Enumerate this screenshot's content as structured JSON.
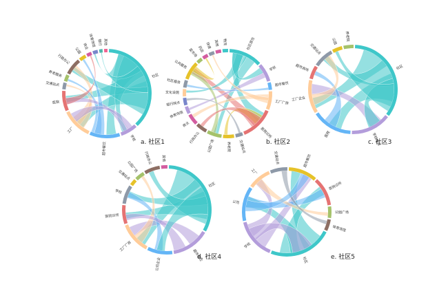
{
  "figure": {
    "panels": [
      {
        "id": "p1",
        "caption": "a. 社区1",
        "groups": [
          {
            "label": "社区",
            "value": 30,
            "color": "#3ec7c9"
          },
          {
            "label": "学校",
            "value": 5,
            "color": "#b39ddb"
          },
          {
            "label": "超市餐饮",
            "value": 9,
            "color": "#64b5f6"
          },
          {
            "label": "工厂",
            "value": 9,
            "color": "#ffcc99"
          },
          {
            "label": "医院",
            "value": 6,
            "color": "#e57373"
          },
          {
            "label": "交通站点",
            "value": 2,
            "color": "#8e99a8"
          },
          {
            "label": "养老服务",
            "value": 2,
            "color": "#a5c26a"
          },
          {
            "label": "行政办公",
            "value": 5,
            "color": "#8d6e63"
          },
          {
            "label": "公园",
            "value": 2,
            "color": "#e6c229"
          },
          {
            "label": "商业",
            "value": 1.5,
            "color": "#d35da0"
          },
          {
            "label": "体育场馆",
            "value": 1.5,
            "color": "#7986cb"
          },
          {
            "label": "银行",
            "value": 1,
            "color": "#4db6ac"
          },
          {
            "label": "其他",
            "value": 1,
            "color": "#f06292"
          }
        ],
        "chords": [
          [
            0,
            2,
            "#3ec7c9"
          ],
          [
            0,
            3,
            "#3ec7c9"
          ],
          [
            0,
            4,
            "#3ec7c9"
          ],
          [
            0,
            1,
            "#3ec7c9"
          ],
          [
            0,
            7,
            "#3ec7c9"
          ],
          [
            3,
            7,
            "#ffcc99"
          ],
          [
            3,
            5,
            "#ffcc99"
          ],
          [
            2,
            6,
            "#64b5f6"
          ],
          [
            1,
            4,
            "#b39ddb"
          ],
          [
            4,
            9,
            "#e57373"
          ],
          [
            0,
            10,
            "#3ec7c9"
          ],
          [
            2,
            8,
            "#64b5f6"
          ],
          [
            0,
            11,
            "#3ec7c9"
          ],
          [
            1,
            3,
            "#b39ddb"
          ]
        ]
      },
      {
        "id": "p2",
        "caption": "b. 社区2",
        "groups": [
          {
            "label": "社区居住",
            "value": 9,
            "color": "#3ec7c9"
          },
          {
            "label": "学校",
            "value": 5,
            "color": "#b39ddb"
          },
          {
            "label": "超市餐饮",
            "value": 2,
            "color": "#64b5f6"
          },
          {
            "label": "工厂厂房",
            "value": 5,
            "color": "#ffcc99"
          },
          {
            "label": "医院诊所",
            "value": 9,
            "color": "#e57373"
          },
          {
            "label": "交通站点",
            "value": 2,
            "color": "#8e99a8"
          },
          {
            "label": "养老院",
            "value": 3,
            "color": "#e6c229"
          },
          {
            "label": "公园广场",
            "value": 4,
            "color": "#a5c26a"
          },
          {
            "label": "行政办公",
            "value": 3,
            "color": "#8d6e63"
          },
          {
            "label": "商业",
            "value": 3,
            "color": "#d35da0"
          },
          {
            "label": "体育场馆",
            "value": 2,
            "color": "#b39ddb"
          },
          {
            "label": "银行网点",
            "value": 2,
            "color": "#7986cb"
          },
          {
            "label": "文化设施",
            "value": 2,
            "color": "#ffcc99"
          },
          {
            "label": "社区服务",
            "value": 2,
            "color": "#8e99a8"
          },
          {
            "label": "公共服务",
            "value": 5,
            "color": "#e6c229"
          },
          {
            "label": "菜市场",
            "value": 1.5,
            "color": "#a5c26a"
          },
          {
            "label": "药店",
            "value": 1.5,
            "color": "#d35da0"
          },
          {
            "label": "快递",
            "value": 1.5,
            "color": "#8e99a8"
          },
          {
            "label": "其他",
            "value": 1.5,
            "color": "#d35da0"
          },
          {
            "label": "物流",
            "value": 1.5,
            "color": "#3ec7c9"
          }
        ],
        "chords": [
          [
            0,
            4,
            "#3ec7c9"
          ],
          [
            0,
            7,
            "#3ec7c9"
          ],
          [
            4,
            14,
            "#e57373"
          ],
          [
            3,
            9,
            "#ffcc99"
          ],
          [
            6,
            4,
            "#e6c229"
          ],
          [
            1,
            10,
            "#b39ddb"
          ],
          [
            0,
            12,
            "#3ec7c9"
          ],
          [
            2,
            13,
            "#64b5f6"
          ],
          [
            7,
            14,
            "#a5c26a"
          ],
          [
            4,
            8,
            "#e57373"
          ],
          [
            0,
            1,
            "#3ec7c9"
          ],
          [
            14,
            16,
            "#e6c229"
          ],
          [
            3,
            17,
            "#ffcc99"
          ],
          [
            5,
            11,
            "#8e99a8"
          ]
        ]
      },
      {
        "id": "p3",
        "caption": "c. 社区3",
        "groups": [
          {
            "label": "社区",
            "value": 14,
            "color": "#3ec7c9"
          },
          {
            "label": "学校培训",
            "value": 6,
            "color": "#b39ddb"
          },
          {
            "label": "医院",
            "value": 6,
            "color": "#64b5f6"
          },
          {
            "label": "工厂企业",
            "value": 5,
            "color": "#ffcc99"
          },
          {
            "label": "超市商场",
            "value": 2,
            "color": "#e57373"
          },
          {
            "label": "交通站点",
            "value": 3,
            "color": "#8e99a8"
          },
          {
            "label": "公园",
            "value": 1.5,
            "color": "#e6c229"
          },
          {
            "label": "养老院",
            "value": 1.5,
            "color": "#a5c26a"
          }
        ],
        "chords": [
          [
            0,
            3,
            "#3ec7c9"
          ],
          [
            0,
            2,
            "#3ec7c9"
          ],
          [
            0,
            5,
            "#3ec7c9"
          ],
          [
            1,
            3,
            "#b39ddb"
          ],
          [
            0,
            1,
            "#3ec7c9"
          ],
          [
            2,
            4,
            "#64b5f6"
          ],
          [
            3,
            5,
            "#ffcc99"
          ],
          [
            0,
            6,
            "#3ec7c9"
          ]
        ]
      },
      {
        "id": "p4",
        "caption": "d. 社区4",
        "groups": [
          {
            "label": "社区",
            "value": 14,
            "color": "#3ec7c9"
          },
          {
            "label": "超市餐饮",
            "value": 6,
            "color": "#b39ddb"
          },
          {
            "label": "公司企业",
            "value": 4,
            "color": "#64b5f6"
          },
          {
            "label": "工厂厂房",
            "value": 5,
            "color": "#ffcc99"
          },
          {
            "label": "医院诊所",
            "value": 3,
            "color": "#e57373"
          },
          {
            "label": "学校",
            "value": 3,
            "color": "#8e99a8"
          },
          {
            "label": "交通站点",
            "value": 1,
            "color": "#e6c229"
          },
          {
            "label": "公园广场",
            "value": 1.5,
            "color": "#a5c26a"
          },
          {
            "label": "行政办公",
            "value": 2.5,
            "color": "#8d6e63"
          },
          {
            "label": "其他",
            "value": 1,
            "color": "#d35da0"
          }
        ],
        "chords": [
          [
            0,
            3,
            "#3ec7c9"
          ],
          [
            0,
            4,
            "#3ec7c9"
          ],
          [
            0,
            5,
            "#3ec7c9"
          ],
          [
            1,
            3,
            "#b39ddb"
          ],
          [
            0,
            8,
            "#3ec7c9"
          ],
          [
            2,
            5,
            "#64b5f6"
          ],
          [
            3,
            7,
            "#ffcc99"
          ],
          [
            1,
            4,
            "#b39ddb"
          ],
          [
            0,
            2,
            "#3ec7c9"
          ]
        ]
      },
      {
        "id": "p5",
        "caption": "e. 社区5",
        "groups": [
          {
            "label": "超市餐饮",
            "value": 5,
            "color": "#e6c229"
          },
          {
            "label": "医院诊所",
            "value": 5,
            "color": "#e57373"
          },
          {
            "label": "公园广场",
            "value": 2,
            "color": "#a5c26a"
          },
          {
            "label": "体育场馆",
            "value": 2,
            "color": "#8d6e63"
          },
          {
            "label": "社区",
            "value": 11,
            "color": "#3ec7c9"
          },
          {
            "label": "学校",
            "value": 7,
            "color": "#b39ddb"
          },
          {
            "label": "公司",
            "value": 6,
            "color": "#64b5f6"
          },
          {
            "label": "工厂",
            "value": 4,
            "color": "#ffcc99"
          },
          {
            "label": "交通站点",
            "value": 3,
            "color": "#8e99a8"
          }
        ],
        "chords": [
          [
            4,
            0,
            "#3ec7c9"
          ],
          [
            4,
            1,
            "#3ec7c9"
          ],
          [
            4,
            6,
            "#3ec7c9"
          ],
          [
            5,
            0,
            "#b39ddb"
          ],
          [
            5,
            7,
            "#b39ddb"
          ],
          [
            6,
            1,
            "#64b5f6"
          ],
          [
            7,
            2,
            "#ffcc99"
          ],
          [
            8,
            3,
            "#8e99a8"
          ],
          [
            5,
            4,
            "#b39ddb"
          ],
          [
            6,
            0,
            "#64b5f6"
          ]
        ]
      }
    ]
  }
}
